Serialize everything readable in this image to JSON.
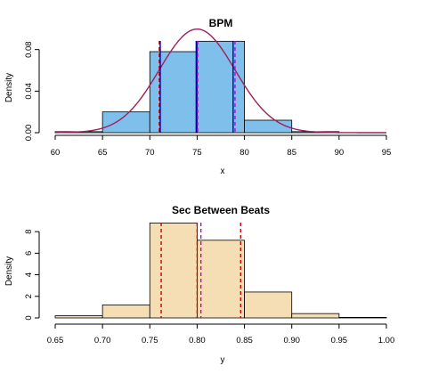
{
  "chart_data": [
    {
      "type": "bar",
      "title": "BPM",
      "xlabel": "x",
      "ylabel": "Density",
      "xlim": [
        60,
        95
      ],
      "ylim": [
        0,
        0.09
      ],
      "x_ticks": [
        "60",
        "65",
        "70",
        "75",
        "80",
        "85",
        "90",
        "95"
      ],
      "y_ticks": [
        "0.00",
        "0.04",
        "0.08"
      ],
      "bins": [
        {
          "from": 60,
          "to": 65,
          "density": 0.001
        },
        {
          "from": 65,
          "to": 70,
          "density": 0.02
        },
        {
          "from": 70,
          "to": 75,
          "density": 0.078
        },
        {
          "from": 75,
          "to": 80,
          "density": 0.088
        },
        {
          "from": 80,
          "to": 85,
          "density": 0.012
        },
        {
          "from": 85,
          "to": 90,
          "density": 0.001
        }
      ],
      "bar_color": "#7fbfec",
      "density_curve": {
        "mean": 75.0,
        "sd": 4.0,
        "color": "#a0205a"
      },
      "vlines": [
        {
          "x": 71.0,
          "color": "#cc0000",
          "dash": true
        },
        {
          "x": 71.1,
          "color": "#0000aa",
          "dash": false
        },
        {
          "x": 74.9,
          "color": "#0000aa",
          "dash": false
        },
        {
          "x": 75.05,
          "color": "#cc00cc",
          "dash": true
        },
        {
          "x": 78.8,
          "color": "#0000aa",
          "dash": false
        },
        {
          "x": 79.0,
          "color": "#cc00cc",
          "dash": true
        }
      ],
      "grid": false
    },
    {
      "type": "bar",
      "title": "Sec Between Beats",
      "xlabel": "y",
      "ylabel": "Density",
      "xlim": [
        0.65,
        1.0
      ],
      "ylim": [
        0,
        9
      ],
      "x_ticks": [
        "0.65",
        "0.70",
        "0.75",
        "0.80",
        "0.85",
        "0.90",
        "0.95",
        "1.00"
      ],
      "y_ticks": [
        "0",
        "2",
        "4",
        "6",
        "8"
      ],
      "bins": [
        {
          "from": 0.65,
          "to": 0.7,
          "density": 0.2
        },
        {
          "from": 0.7,
          "to": 0.75,
          "density": 1.2
        },
        {
          "from": 0.75,
          "to": 0.8,
          "density": 8.8
        },
        {
          "from": 0.8,
          "to": 0.85,
          "density": 7.2
        },
        {
          "from": 0.85,
          "to": 0.9,
          "density": 2.4
        },
        {
          "from": 0.9,
          "to": 0.95,
          "density": 0.4
        },
        {
          "from": 0.95,
          "to": 1.0,
          "density": 0.05
        }
      ],
      "bar_color": "#f5deb3",
      "vlines": [
        {
          "x": 0.762,
          "color": "#cc0000",
          "dash": true
        },
        {
          "x": 0.8,
          "color": "#cc0000",
          "dash": true
        },
        {
          "x": 0.804,
          "color": "#cc00cc",
          "dash": true
        },
        {
          "x": 0.846,
          "color": "#cc0000",
          "dash": true
        }
      ],
      "grid": false
    }
  ]
}
